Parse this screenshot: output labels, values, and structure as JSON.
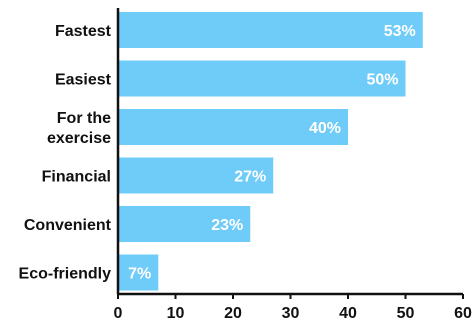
{
  "chart_data": {
    "type": "bar",
    "orientation": "horizontal",
    "categories": [
      "Fastest",
      "Easiest",
      "For the exercise",
      "Financial",
      "Convenient",
      "Eco-friendly"
    ],
    "category_lines": [
      [
        "Fastest"
      ],
      [
        "Easiest"
      ],
      [
        "For the",
        "exercise"
      ],
      [
        "Financial"
      ],
      [
        "Convenient"
      ],
      [
        "Eco-friendly"
      ]
    ],
    "values": [
      53,
      50,
      40,
      27,
      23,
      7
    ],
    "data_labels": [
      "53%",
      "50%",
      "40%",
      "27%",
      "23%",
      "7%"
    ],
    "xlim": [
      0,
      60
    ],
    "xticks": [
      0,
      10,
      20,
      30,
      40,
      50,
      60
    ],
    "grid": false,
    "bar_color": "#6FCBF7",
    "axis_color": "#111111",
    "label_color": "#ffffff"
  }
}
